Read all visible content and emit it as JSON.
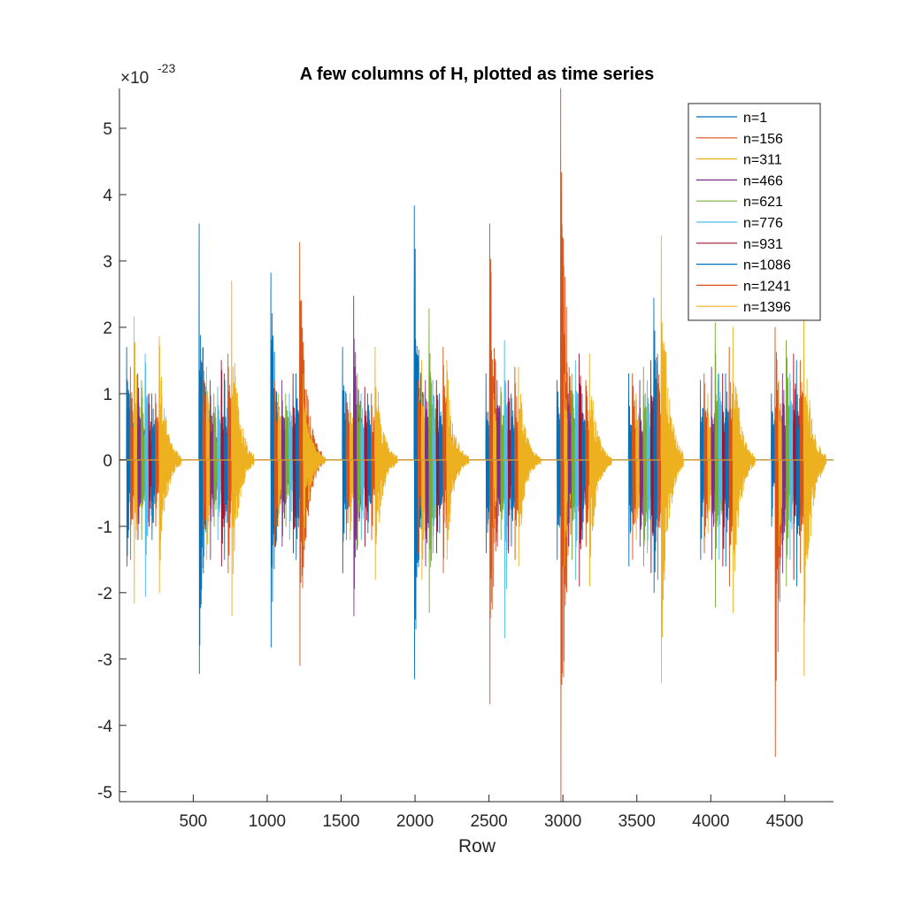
{
  "chart_data": {
    "type": "line",
    "title": "A few columns of H, plotted as time series",
    "xlabel": "Row",
    "ylabel": "",
    "y_exponent_label": "×10",
    "y_exponent_power": "-23",
    "y_scale_factor": 1e-23,
    "xlim": [
      1,
      4830
    ],
    "ylim": [
      -5.15,
      5.6
    ],
    "x_ticks": [
      500,
      1000,
      1500,
      2000,
      2500,
      3000,
      3500,
      4000,
      4500
    ],
    "y_ticks": [
      -5,
      -4,
      -3,
      -2,
      -1,
      0,
      1,
      2,
      3,
      4,
      5
    ],
    "grid": false,
    "legend_position": "top-right",
    "burst_centers": [
      50,
      540,
      1025,
      1510,
      1995,
      2480,
      2960,
      3445,
      3930,
      4410
    ],
    "series": [
      {
        "name": "n=1",
        "color": "#0072BD",
        "offset_rows": 0,
        "peak_pos": [
          1.7,
          3.56,
          2.82,
          1.7,
          3.83,
          1.3,
          1.2,
          1.3,
          1.2,
          1.0
        ],
        "peak_neg": [
          -1.6,
          -3.22,
          -2.82,
          -1.7,
          -3.3,
          -1.4,
          -1.5,
          -1.6,
          -1.5,
          -1.0
        ]
      },
      {
        "name": "n=156",
        "color": "#D95319",
        "offset_rows": 25,
        "peak_pos": [
          1.4,
          1.5,
          1.2,
          1.0,
          1.2,
          3.56,
          5.6,
          1.3,
          1.3,
          2.0
        ],
        "peak_neg": [
          -1.5,
          -1.6,
          -1.3,
          -1.2,
          -1.4,
          -3.68,
          -5.15,
          -1.5,
          -1.4,
          -4.47
        ]
      },
      {
        "name": "n=311",
        "color": "#EDB120",
        "offset_rows": 50,
        "peak_pos": [
          2.16,
          1.4,
          1.0,
          1.0,
          1.5,
          1.0,
          1.3,
          1.0,
          1.0,
          1.2
        ],
        "peak_neg": [
          -2.16,
          -1.5,
          -1.0,
          -1.2,
          -1.8,
          -1.0,
          -1.6,
          -1.2,
          -1.1,
          -1.3
        ]
      },
      {
        "name": "n=466",
        "color": "#7E2F8E",
        "offset_rows": 75,
        "peak_pos": [
          1.3,
          1.2,
          1.2,
          2.47,
          1.2,
          1.2,
          1.0,
          1.2,
          1.4,
          1.3
        ],
        "peak_neg": [
          -1.2,
          -1.5,
          -1.3,
          -2.35,
          -1.6,
          -1.3,
          -1.3,
          -1.3,
          -1.5,
          -1.7
        ]
      },
      {
        "name": "n=621",
        "color": "#77AC30",
        "offset_rows": 100,
        "peak_pos": [
          1.2,
          1.0,
          1.0,
          1.3,
          2.28,
          1.1,
          1.3,
          1.4,
          2.07,
          1.8
        ],
        "peak_neg": [
          -1.2,
          -1.0,
          -1.0,
          -1.3,
          -2.3,
          -1.2,
          -1.5,
          -1.6,
          -2.22,
          -1.9
        ]
      },
      {
        "name": "n=776",
        "color": "#4DBEEE",
        "offset_rows": 125,
        "peak_pos": [
          1.6,
          1.1,
          1.0,
          1.0,
          1.2,
          1.8,
          1.5,
          1.2,
          1.3,
          1.3
        ],
        "peak_neg": [
          -2.06,
          -1.2,
          -1.2,
          -1.2,
          -1.4,
          -2.68,
          -1.8,
          -1.4,
          -1.5,
          -1.5
        ]
      },
      {
        "name": "n=931",
        "color": "#A2142F",
        "offset_rows": 150,
        "peak_pos": [
          1.0,
          1.5,
          1.3,
          1.1,
          1.2,
          1.2,
          1.6,
          1.5,
          1.3,
          1.6
        ],
        "peak_neg": [
          -1.0,
          -1.6,
          -1.4,
          -1.3,
          -1.4,
          -1.4,
          -1.9,
          -1.7,
          -1.6,
          -1.8
        ]
      },
      {
        "name": "n=1086",
        "color": "#0072BD",
        "offset_rows": 170,
        "peak_pos": [
          1.0,
          1.3,
          1.3,
          1.0,
          1.0,
          1.0,
          1.0,
          2.44,
          1.3,
          1.5
        ],
        "peak_neg": [
          -1.2,
          -1.5,
          -1.5,
          -1.1,
          -1.1,
          -1.3,
          -1.2,
          -2.0,
          -1.6,
          -1.9
        ]
      },
      {
        "name": "n=1241",
        "color": "#D95319",
        "offset_rows": 195,
        "peak_pos": [
          1.0,
          1.6,
          3.28,
          1.0,
          1.7,
          1.4,
          1.2,
          1.6,
          1.7,
          1.5
        ],
        "peak_neg": [
          -1.0,
          -1.7,
          -3.1,
          -1.2,
          -1.7,
          -1.5,
          -1.3,
          -1.8,
          -1.9,
          -1.7
        ]
      },
      {
        "name": "n=1396",
        "color": "#EDB120",
        "offset_rows": 220,
        "peak_pos": [
          1.86,
          2.7,
          1.3,
          1.7,
          1.5,
          1.4,
          1.6,
          3.38,
          2.0,
          2.17
        ],
        "peak_neg": [
          -2.0,
          -2.35,
          -1.3,
          -1.8,
          -1.5,
          -1.6,
          -1.9,
          -3.35,
          -2.3,
          -3.25
        ]
      }
    ]
  }
}
